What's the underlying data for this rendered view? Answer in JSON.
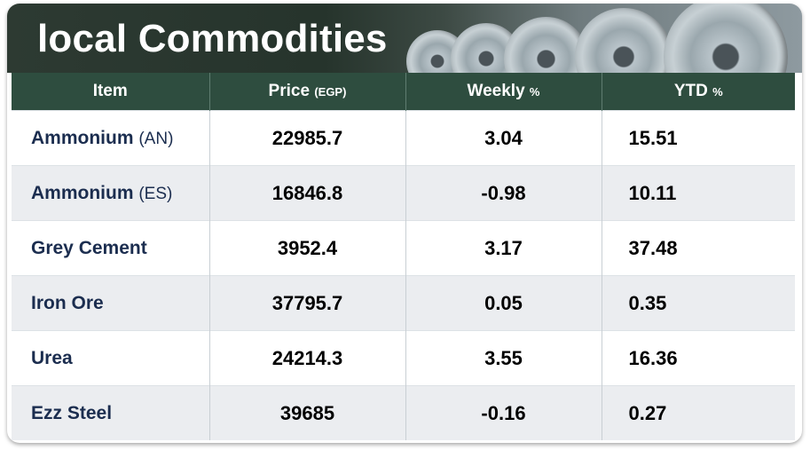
{
  "title": "local Commodities",
  "columns": {
    "item": "Item",
    "price": "Price",
    "price_unit": "(EGP)",
    "weekly": "Weekly",
    "weekly_unit": "%",
    "ytd": "YTD",
    "ytd_unit": "%"
  },
  "rows": [
    {
      "name": "Ammonium",
      "suffix": "(AN)",
      "price": "22985.7",
      "weekly": "3.04",
      "ytd": "15.51"
    },
    {
      "name": "Ammonium",
      "suffix": "(ES)",
      "price": "16846.8",
      "weekly": "-0.98",
      "ytd": "10.11"
    },
    {
      "name": "Grey Cement",
      "suffix": "",
      "price": "3952.4",
      "weekly": "3.17",
      "ytd": "37.48"
    },
    {
      "name": "Iron Ore",
      "suffix": "",
      "price": "37795.7",
      "weekly": "0.05",
      "ytd": "0.35"
    },
    {
      "name": "Urea",
      "suffix": "",
      "price": "24214.3",
      "weekly": "3.55",
      "ytd": "16.36"
    },
    {
      "name": "Ezz Steel",
      "suffix": "",
      "price": "39685",
      "weekly": "-0.16",
      "ytd": "0.27"
    }
  ]
}
